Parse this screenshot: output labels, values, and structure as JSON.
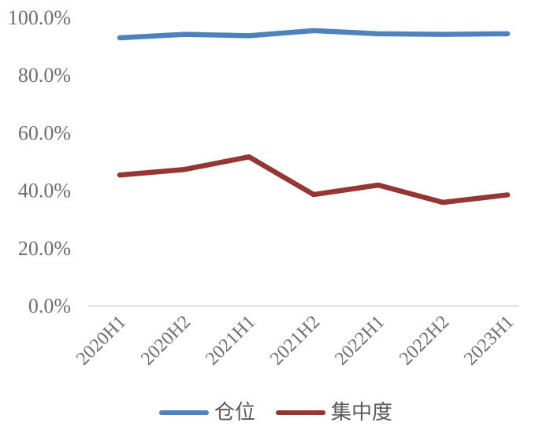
{
  "chart_data": {
    "type": "line",
    "title": "",
    "xlabel": "",
    "ylabel": "",
    "categories": [
      "2020H1",
      "2020H2",
      "2021H1",
      "2021H2",
      "2022H1",
      "2022H2",
      "2023H1"
    ],
    "series": [
      {
        "name": "仓位",
        "color": "#4F81BD",
        "values": [
          92.9,
          94.1,
          93.6,
          95.4,
          94.3,
          94.1,
          94.3
        ]
      },
      {
        "name": "集中度",
        "color": "#943634",
        "values": [
          45.3,
          47.2,
          51.6,
          38.5,
          41.8,
          35.8,
          38.4
        ]
      }
    ],
    "ylim": [
      0,
      100
    ],
    "yticks": [
      {
        "value": 0,
        "label": "0.0%"
      },
      {
        "value": 20,
        "label": "20.0%"
      },
      {
        "value": 40,
        "label": "40.0%"
      },
      {
        "value": 60,
        "label": "60.0%"
      },
      {
        "value": 80,
        "label": "80.0%"
      },
      {
        "value": 100,
        "label": "100.0%"
      }
    ],
    "grid": false,
    "legend_position": "bottom",
    "x_tick_rotation_deg": 45,
    "colors": {
      "axis_line": "#D9D9D9",
      "tick_label": "#6E6E6E",
      "legend_label": "#5A5A5A",
      "background": "#FFFFFF"
    }
  }
}
